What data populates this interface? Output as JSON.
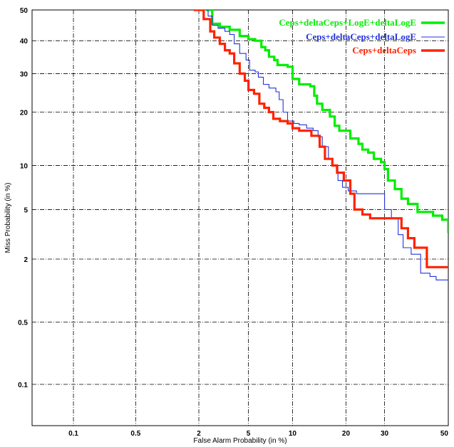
{
  "chart_data": {
    "type": "line",
    "chart_kind": "DET curve",
    "scale": "normal-deviate (probit) on both axes",
    "xlabel": "False Alarm Probability (in %)",
    "ylabel": "Miss Probability (in %)",
    "xlim": [
      0.03,
      50
    ],
    "ylim": [
      0.03,
      50
    ],
    "x_ticks": [
      "0.1",
      "0.5",
      "2",
      "5",
      "10",
      "20",
      "30",
      "50"
    ],
    "y_ticks": [
      "0.1",
      "0.5",
      "2",
      "5",
      "10",
      "20",
      "30",
      "40",
      "50"
    ],
    "grid": true,
    "legend_position": "top-right",
    "series": [
      {
        "name": "Ceps+deltaCeps+LogE+deltaLogE",
        "color": "#00ee00",
        "line": "thick",
        "points": [
          [
            2.3,
            50
          ],
          [
            2.6,
            45.5
          ],
          [
            3.0,
            44.5
          ],
          [
            3.6,
            43.5
          ],
          [
            4.3,
            41.5
          ],
          [
            5.0,
            40.5
          ],
          [
            5.6,
            40
          ],
          [
            6.2,
            38
          ],
          [
            6.6,
            37
          ],
          [
            7.0,
            35
          ],
          [
            7.6,
            34
          ],
          [
            8.0,
            32.5
          ],
          [
            9.3,
            32
          ],
          [
            10.0,
            28.5
          ],
          [
            11.0,
            27
          ],
          [
            12.8,
            26.5
          ],
          [
            13.5,
            24
          ],
          [
            14.0,
            22
          ],
          [
            15.0,
            20.5
          ],
          [
            16.5,
            19
          ],
          [
            17.5,
            17
          ],
          [
            18.5,
            16
          ],
          [
            21.0,
            14.5
          ],
          [
            23.0,
            13.5
          ],
          [
            24.0,
            12.5
          ],
          [
            25.5,
            12
          ],
          [
            27.0,
            11
          ],
          [
            29.0,
            10.5
          ],
          [
            30.0,
            9.5
          ],
          [
            31.0,
            8
          ],
          [
            33.0,
            7
          ],
          [
            35.0,
            6
          ],
          [
            37.0,
            5.5
          ],
          [
            40.0,
            4.8
          ],
          [
            45.0,
            4.5
          ],
          [
            48.0,
            4.2
          ],
          [
            50.0,
            3.3
          ]
        ]
      },
      {
        "name": "Ceps+deltaCeps+deltaLogE",
        "color": "#2233dd",
        "line": "thin",
        "points": [
          [
            1.9,
            50
          ],
          [
            2.4,
            48
          ],
          [
            2.6,
            45
          ],
          [
            2.9,
            44
          ],
          [
            3.3,
            43
          ],
          [
            3.6,
            42
          ],
          [
            3.9,
            39
          ],
          [
            4.3,
            36
          ],
          [
            4.8,
            34
          ],
          [
            5.1,
            31
          ],
          [
            5.6,
            30.5
          ],
          [
            5.9,
            29
          ],
          [
            6.4,
            27
          ],
          [
            7.0,
            26
          ],
          [
            7.8,
            25
          ],
          [
            8.2,
            23
          ],
          [
            8.7,
            20
          ],
          [
            9.3,
            18
          ],
          [
            10.2,
            17.5
          ],
          [
            11.0,
            17.2
          ],
          [
            12.2,
            16.5
          ],
          [
            13.3,
            16
          ],
          [
            14.2,
            14.8
          ],
          [
            15.0,
            13
          ],
          [
            16.2,
            11
          ],
          [
            17.0,
            10
          ],
          [
            18.2,
            8
          ],
          [
            19.2,
            7.2
          ],
          [
            20.5,
            6.8
          ],
          [
            22.5,
            6.5
          ],
          [
            28.0,
            6.5
          ],
          [
            30.0,
            5
          ],
          [
            32.0,
            4.3
          ],
          [
            34.0,
            3.2
          ],
          [
            35.5,
            2.5
          ],
          [
            38.0,
            2.2
          ],
          [
            41.0,
            1.5
          ],
          [
            44.0,
            1.4
          ],
          [
            46.0,
            1.3
          ],
          [
            50.0,
            1.3
          ]
        ]
      },
      {
        "name": "Ceps+deltaCeps",
        "color": "#ff2200",
        "line": "thick",
        "points": [
          [
            1.8,
            50
          ],
          [
            2.2,
            47
          ],
          [
            2.5,
            43
          ],
          [
            2.7,
            41
          ],
          [
            3.0,
            39
          ],
          [
            3.3,
            37
          ],
          [
            3.6,
            36
          ],
          [
            3.9,
            33
          ],
          [
            4.3,
            30
          ],
          [
            4.7,
            28
          ],
          [
            5.0,
            25.5
          ],
          [
            5.5,
            24.5
          ],
          [
            6.0,
            22
          ],
          [
            6.5,
            21
          ],
          [
            7.0,
            20
          ],
          [
            7.5,
            18.5
          ],
          [
            8.3,
            18
          ],
          [
            9.3,
            17.5
          ],
          [
            10.0,
            16.5
          ],
          [
            11.0,
            16
          ],
          [
            13.0,
            15
          ],
          [
            14.5,
            13
          ],
          [
            15.5,
            11
          ],
          [
            17.0,
            10
          ],
          [
            18.0,
            9
          ],
          [
            19.5,
            8
          ],
          [
            21.0,
            6.5
          ],
          [
            22.0,
            5
          ],
          [
            24.0,
            4.6
          ],
          [
            26.0,
            4.3
          ],
          [
            31.0,
            4.3
          ],
          [
            35.0,
            3.6
          ],
          [
            37.0,
            3.0
          ],
          [
            39.0,
            2.5
          ],
          [
            42.0,
            2.5
          ],
          [
            43.0,
            1.7
          ],
          [
            46.0,
            1.7
          ],
          [
            50.0,
            1.7
          ]
        ]
      }
    ]
  }
}
